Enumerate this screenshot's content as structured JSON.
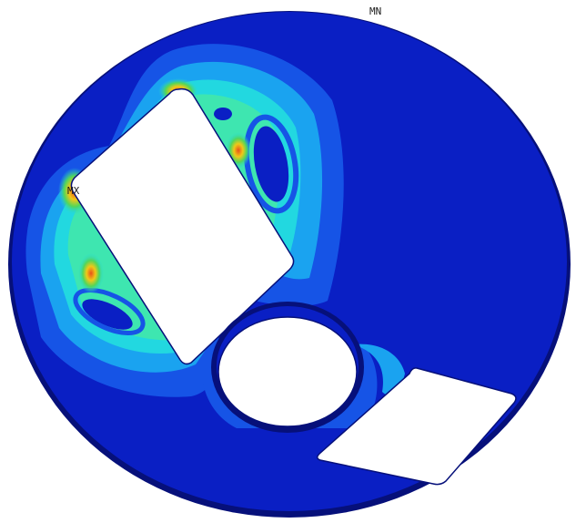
{
  "figure": {
    "markers": {
      "max_label": "MX",
      "min_label": "MN"
    },
    "colors": {
      "background": "#ffffff",
      "base": "#0a1fc4",
      "outline": "#06107a",
      "contour_levels": [
        "#0a1fc4",
        "#1654e6",
        "#1aa3f0",
        "#22d8e0",
        "#3ee6b0",
        "#52d65a",
        "#b6e636",
        "#f0c818",
        "#e8501a"
      ]
    }
  }
}
